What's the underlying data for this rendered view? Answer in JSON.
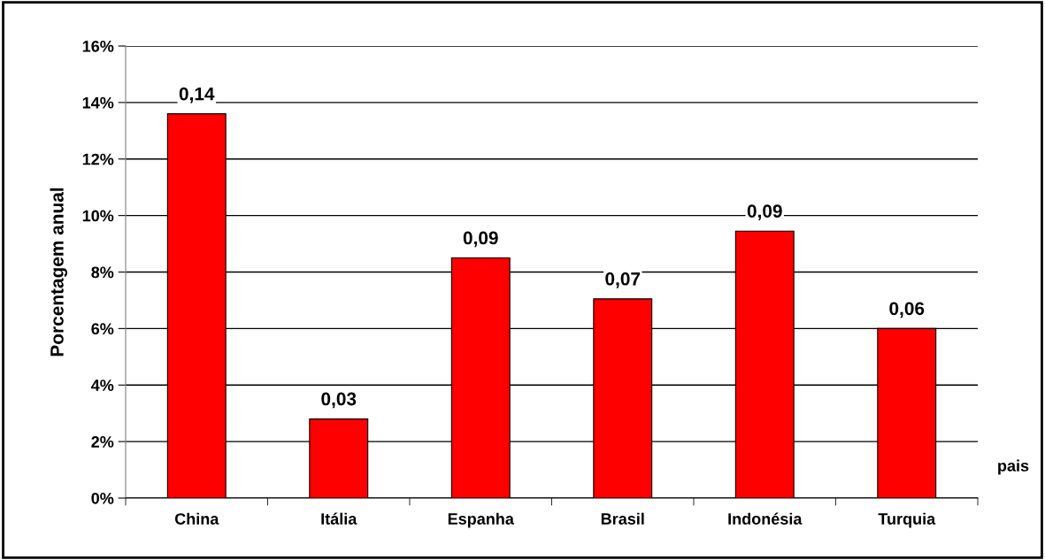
{
  "chart_data": {
    "type": "bar",
    "ylabel": "Porcentagem anual",
    "xlabel": "pais",
    "categories": [
      "China",
      "Itália",
      "Espanha",
      "Brasil",
      "Indonésia",
      "Turquia"
    ],
    "values": [
      0.136,
      0.028,
      0.085,
      0.0705,
      0.0945,
      0.06
    ],
    "value_labels": [
      "0,14",
      "0,03",
      "0,09",
      "0,07",
      "0,09",
      "0,06"
    ],
    "color": "#ff0000",
    "ylim": [
      0,
      0.16
    ],
    "yticks": [
      {
        "value": 0,
        "label": "0%"
      },
      {
        "value": 0.02,
        "label": "2%"
      },
      {
        "value": 0.04,
        "label": "4%"
      },
      {
        "value": 0.06,
        "label": "6%"
      },
      {
        "value": 0.08,
        "label": "8%"
      },
      {
        "value": 0.1,
        "label": "10%"
      },
      {
        "value": 0.12,
        "label": "12%"
      },
      {
        "value": 0.14,
        "label": "14%"
      },
      {
        "value": 0.16,
        "label": "16%"
      }
    ],
    "grid": "y",
    "legend": false
  }
}
